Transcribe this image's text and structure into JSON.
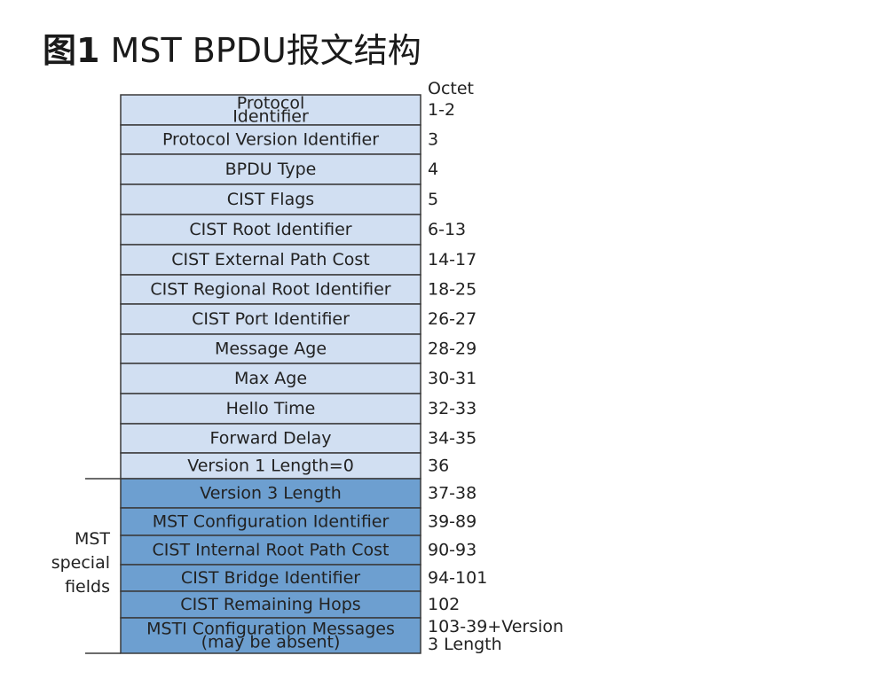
{
  "title": {
    "number": "图1",
    "text": "MST BPDU报文结构"
  },
  "octet_header": "Octet",
  "group_label": [
    "MST",
    "special",
    "fields"
  ],
  "colors": {
    "standard_fill": "#d1dff2",
    "mst_fill": "#6d9fd0",
    "border": "#3a3a3a"
  },
  "fields": [
    {
      "label": [
        "Protocol",
        "Identifier"
      ],
      "octet": [
        "1-2"
      ],
      "mst": false
    },
    {
      "label": [
        "Protocol Version Identifier"
      ],
      "octet": [
        "3"
      ],
      "mst": false
    },
    {
      "label": [
        "BPDU Type"
      ],
      "octet": [
        "4"
      ],
      "mst": false
    },
    {
      "label": [
        "CIST Flags"
      ],
      "octet": [
        "5"
      ],
      "mst": false
    },
    {
      "label": [
        "CIST Root Identifier"
      ],
      "octet": [
        "6-13"
      ],
      "mst": false
    },
    {
      "label": [
        "CIST External Path Cost"
      ],
      "octet": [
        "14-17"
      ],
      "mst": false
    },
    {
      "label": [
        "CIST Regional Root Identifier"
      ],
      "octet": [
        "18-25"
      ],
      "mst": false
    },
    {
      "label": [
        "CIST Port Identifier"
      ],
      "octet": [
        "26-27"
      ],
      "mst": false
    },
    {
      "label": [
        "Message Age"
      ],
      "octet": [
        "28-29"
      ],
      "mst": false
    },
    {
      "label": [
        "Max Age"
      ],
      "octet": [
        "30-31"
      ],
      "mst": false
    },
    {
      "label": [
        "Hello Time"
      ],
      "octet": [
        "32-33"
      ],
      "mst": false
    },
    {
      "label": [
        "Forward Delay"
      ],
      "octet": [
        "34-35"
      ],
      "mst": false
    },
    {
      "label": [
        "Version 1 Length=0"
      ],
      "octet": [
        "36"
      ],
      "mst": false
    },
    {
      "label": [
        "Version 3 Length"
      ],
      "octet": [
        "37-38"
      ],
      "mst": true
    },
    {
      "label": [
        "MST Configuration Identifier"
      ],
      "octet": [
        "39-89"
      ],
      "mst": true
    },
    {
      "label": [
        "CIST Internal Root Path Cost"
      ],
      "octet": [
        "90-93"
      ],
      "mst": true
    },
    {
      "label": [
        "CIST Bridge Identifier"
      ],
      "octet": [
        "94-101"
      ],
      "mst": true
    },
    {
      "label": [
        "CIST Remaining Hops"
      ],
      "octet": [
        "102"
      ],
      "mst": true
    },
    {
      "label": [
        "MSTI Configuration Messages",
        "(may be absent)"
      ],
      "octet": [
        "103-39+Version",
        "3 Length"
      ],
      "mst": true
    }
  ]
}
